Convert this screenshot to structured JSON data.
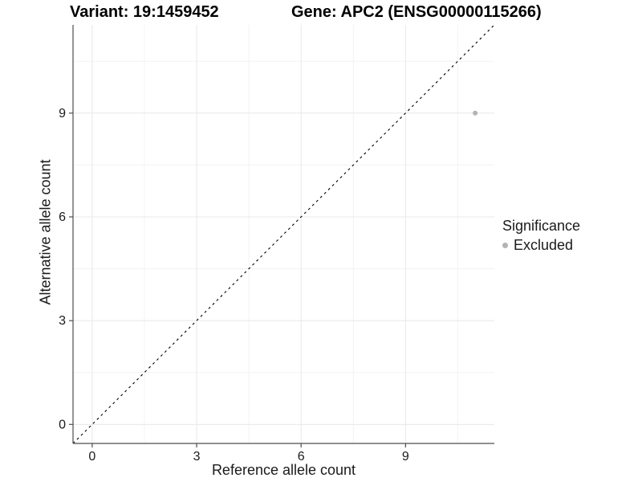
{
  "header": {
    "variant_title": "Variant: 19:1459452",
    "gene_title": "Gene: APC2 (ENSG00000115266)"
  },
  "chart_data": {
    "type": "scatter",
    "title_left": "Variant: 19:1459452",
    "title_right": "Gene: APC2 (ENSG00000115266)",
    "xlabel": "Reference allele count",
    "ylabel": "Alternative allele count",
    "xlim": [
      -0.55,
      11.55
    ],
    "ylim": [
      -0.55,
      11.55
    ],
    "x_ticks": [
      0,
      3,
      6,
      9
    ],
    "y_ticks": [
      0,
      3,
      6,
      9
    ],
    "x_minor_ticks": [
      1.5,
      4.5,
      7.5,
      10.5
    ],
    "y_minor_ticks": [
      1.5,
      4.5,
      7.5,
      10.5
    ],
    "grid": "major+minor",
    "legend_position": "right",
    "reference_line": {
      "type": "identity y=x",
      "style": "dashed",
      "color": "#000000"
    },
    "series": [
      {
        "name": "Excluded",
        "color": "#b3b3b3",
        "points": [
          {
            "x": 11,
            "y": 9
          }
        ]
      }
    ]
  },
  "legend": {
    "title": "Significance",
    "items": [
      {
        "label": "Excluded",
        "color": "#b3b3b3"
      }
    ]
  },
  "style": {
    "major_grid_color": "#e8e8e8",
    "minor_grid_color": "#f3f3f3",
    "axis_line_color": "#4d4d4d",
    "tick_label_color": "#1a1a1a",
    "point_radius": 3
  }
}
